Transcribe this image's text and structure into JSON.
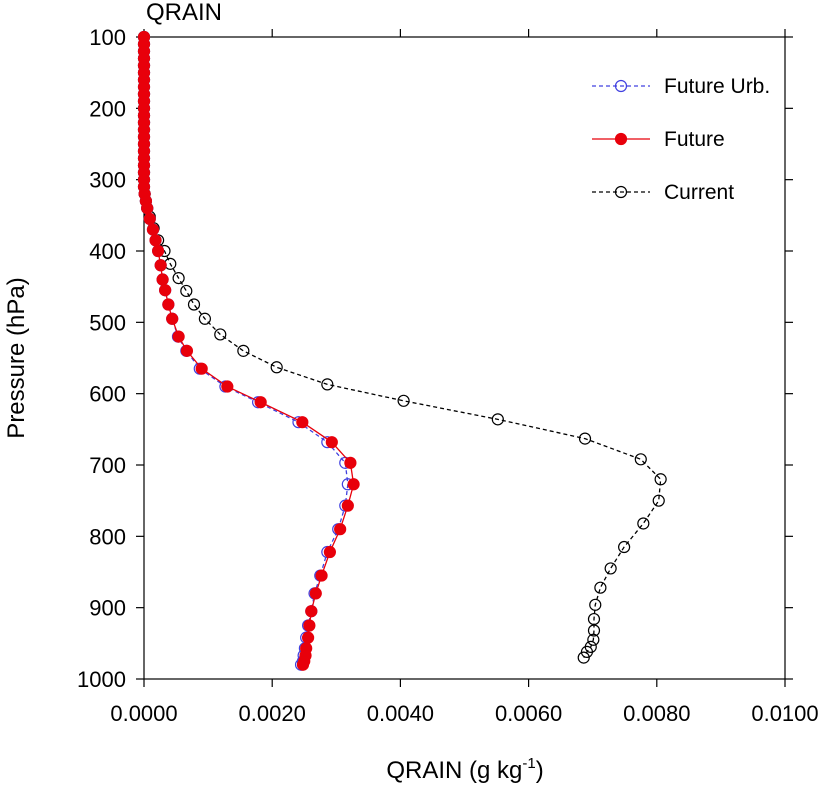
{
  "chart_data": {
    "type": "line",
    "title": "QRAIN",
    "xlabel": "QRAIN (g kg",
    "xlabel_superscript": "-1",
    "xlabel_suffix": ")",
    "ylabel": "Pressure (hPa)",
    "xlim": [
      0.0,
      0.01
    ],
    "ylim": [
      100,
      1000
    ],
    "y_inverted": true,
    "x_ticks": [
      0.0,
      0.002,
      0.004,
      0.006,
      0.008,
      0.01
    ],
    "x_tick_labels": [
      "0.0000",
      "0.0020",
      "0.0040",
      "0.0060",
      "0.0080",
      "0.0100"
    ],
    "y_ticks": [
      100,
      200,
      300,
      400,
      500,
      600,
      700,
      800,
      900,
      1000
    ],
    "y_tick_labels": [
      "100",
      "200",
      "300",
      "400",
      "500",
      "600",
      "700",
      "800",
      "900",
      "1000"
    ],
    "legend_position": "top-right",
    "series": [
      {
        "name": "Future Urb.",
        "color": "#4040e0",
        "line_style": "dashed",
        "marker": "hollow-circle",
        "x": [
          0.0,
          0.0,
          0.0,
          0.0,
          0.0,
          0.0,
          0.0,
          0.0,
          0.0,
          0.0,
          0.0,
          0.0,
          0.0,
          0.0,
          0.0,
          0.0,
          0.0,
          0.0,
          0.0,
          0.0,
          0.0,
          0.0,
          1e-05,
          3e-05,
          5e-05,
          9e-05,
          0.00014,
          0.00018,
          0.00022,
          0.00026,
          0.00029,
          0.00033,
          0.00038,
          0.00044,
          0.00053,
          0.00066,
          0.00087,
          0.00127,
          0.00178,
          0.00241,
          0.00286,
          0.00314,
          0.00318,
          0.00314,
          0.00303,
          0.00286,
          0.00275,
          0.00266,
          0.00261,
          0.00256,
          0.00253,
          0.00251,
          0.00249,
          0.00248,
          0.00245
        ],
        "y": [
          100,
          110,
          120,
          130,
          140,
          150,
          160,
          170,
          180,
          190,
          200,
          210,
          220,
          230,
          240,
          250,
          260,
          270,
          280,
          290,
          300,
          310,
          320,
          330,
          340,
          355,
          370,
          385,
          400,
          420,
          440,
          455,
          475,
          495,
          520,
          540,
          565,
          590,
          612,
          640,
          668,
          697,
          727,
          757,
          790,
          822,
          855,
          880,
          905,
          925,
          942,
          957,
          967,
          975,
          980
        ],
        "legend_label": "Future Urb."
      },
      {
        "name": "Future",
        "color": "#e8000b",
        "line_style": "solid",
        "marker": "filled-circle",
        "x": [
          0.0,
          0.0,
          0.0,
          0.0,
          0.0,
          0.0,
          0.0,
          0.0,
          0.0,
          0.0,
          0.0,
          0.0,
          0.0,
          0.0,
          0.0,
          0.0,
          0.0,
          0.0,
          0.0,
          0.0,
          0.0,
          0.0,
          1e-05,
          3e-05,
          5e-05,
          9e-05,
          0.00014,
          0.00018,
          0.00022,
          0.00026,
          0.00029,
          0.00033,
          0.00038,
          0.00044,
          0.00054,
          0.00067,
          0.0009,
          0.0013,
          0.00182,
          0.00247,
          0.00293,
          0.00322,
          0.00327,
          0.00318,
          0.00306,
          0.0029,
          0.00277,
          0.00268,
          0.00261,
          0.00258,
          0.00256,
          0.00253,
          0.00252,
          0.0025,
          0.00248
        ],
        "y": [
          100,
          110,
          120,
          130,
          140,
          150,
          160,
          170,
          180,
          190,
          200,
          210,
          220,
          230,
          240,
          250,
          260,
          270,
          280,
          290,
          300,
          310,
          320,
          330,
          340,
          355,
          370,
          385,
          400,
          420,
          440,
          455,
          475,
          495,
          520,
          540,
          565,
          590,
          612,
          640,
          668,
          697,
          727,
          757,
          790,
          822,
          855,
          880,
          905,
          925,
          942,
          957,
          967,
          975,
          980
        ],
        "legend_label": "Future"
      },
      {
        "name": "Current",
        "color": "#000000",
        "line_style": "dashed",
        "marker": "hollow-circle",
        "x": [
          0.0,
          0.0,
          0.0,
          0.0,
          0.0,
          0.0,
          0.0,
          0.0,
          0.0,
          0.0,
          0.0,
          0.0,
          0.0,
          0.0,
          0.0,
          0.0,
          0.0,
          0.0,
          0.0,
          0.0,
          0.0,
          0.0,
          1e-05,
          3e-05,
          5e-05,
          9e-05,
          0.00015,
          0.00022,
          0.00032,
          0.00041,
          0.00054,
          0.00066,
          0.00078,
          0.00095,
          0.00119,
          0.00155,
          0.00207,
          0.00286,
          0.00405,
          0.00552,
          0.00688,
          0.00775,
          0.00806,
          0.00803,
          0.00779,
          0.00749,
          0.00728,
          0.00712,
          0.00704,
          0.00702,
          0.00702,
          0.00701,
          0.00697,
          0.00691,
          0.00686
        ],
        "y": [
          100,
          110,
          120,
          130,
          140,
          150,
          160,
          170,
          180,
          190,
          200,
          210,
          220,
          230,
          240,
          250,
          260,
          270,
          280,
          290,
          300,
          310,
          320,
          330,
          340,
          352,
          368,
          385,
          400,
          418,
          438,
          456,
          475,
          495,
          517,
          540,
          563,
          587,
          610,
          636,
          663,
          692,
          720,
          750,
          782,
          815,
          845,
          872,
          896,
          916,
          932,
          945,
          955,
          962,
          970
        ],
        "legend_label": "Current"
      }
    ]
  }
}
